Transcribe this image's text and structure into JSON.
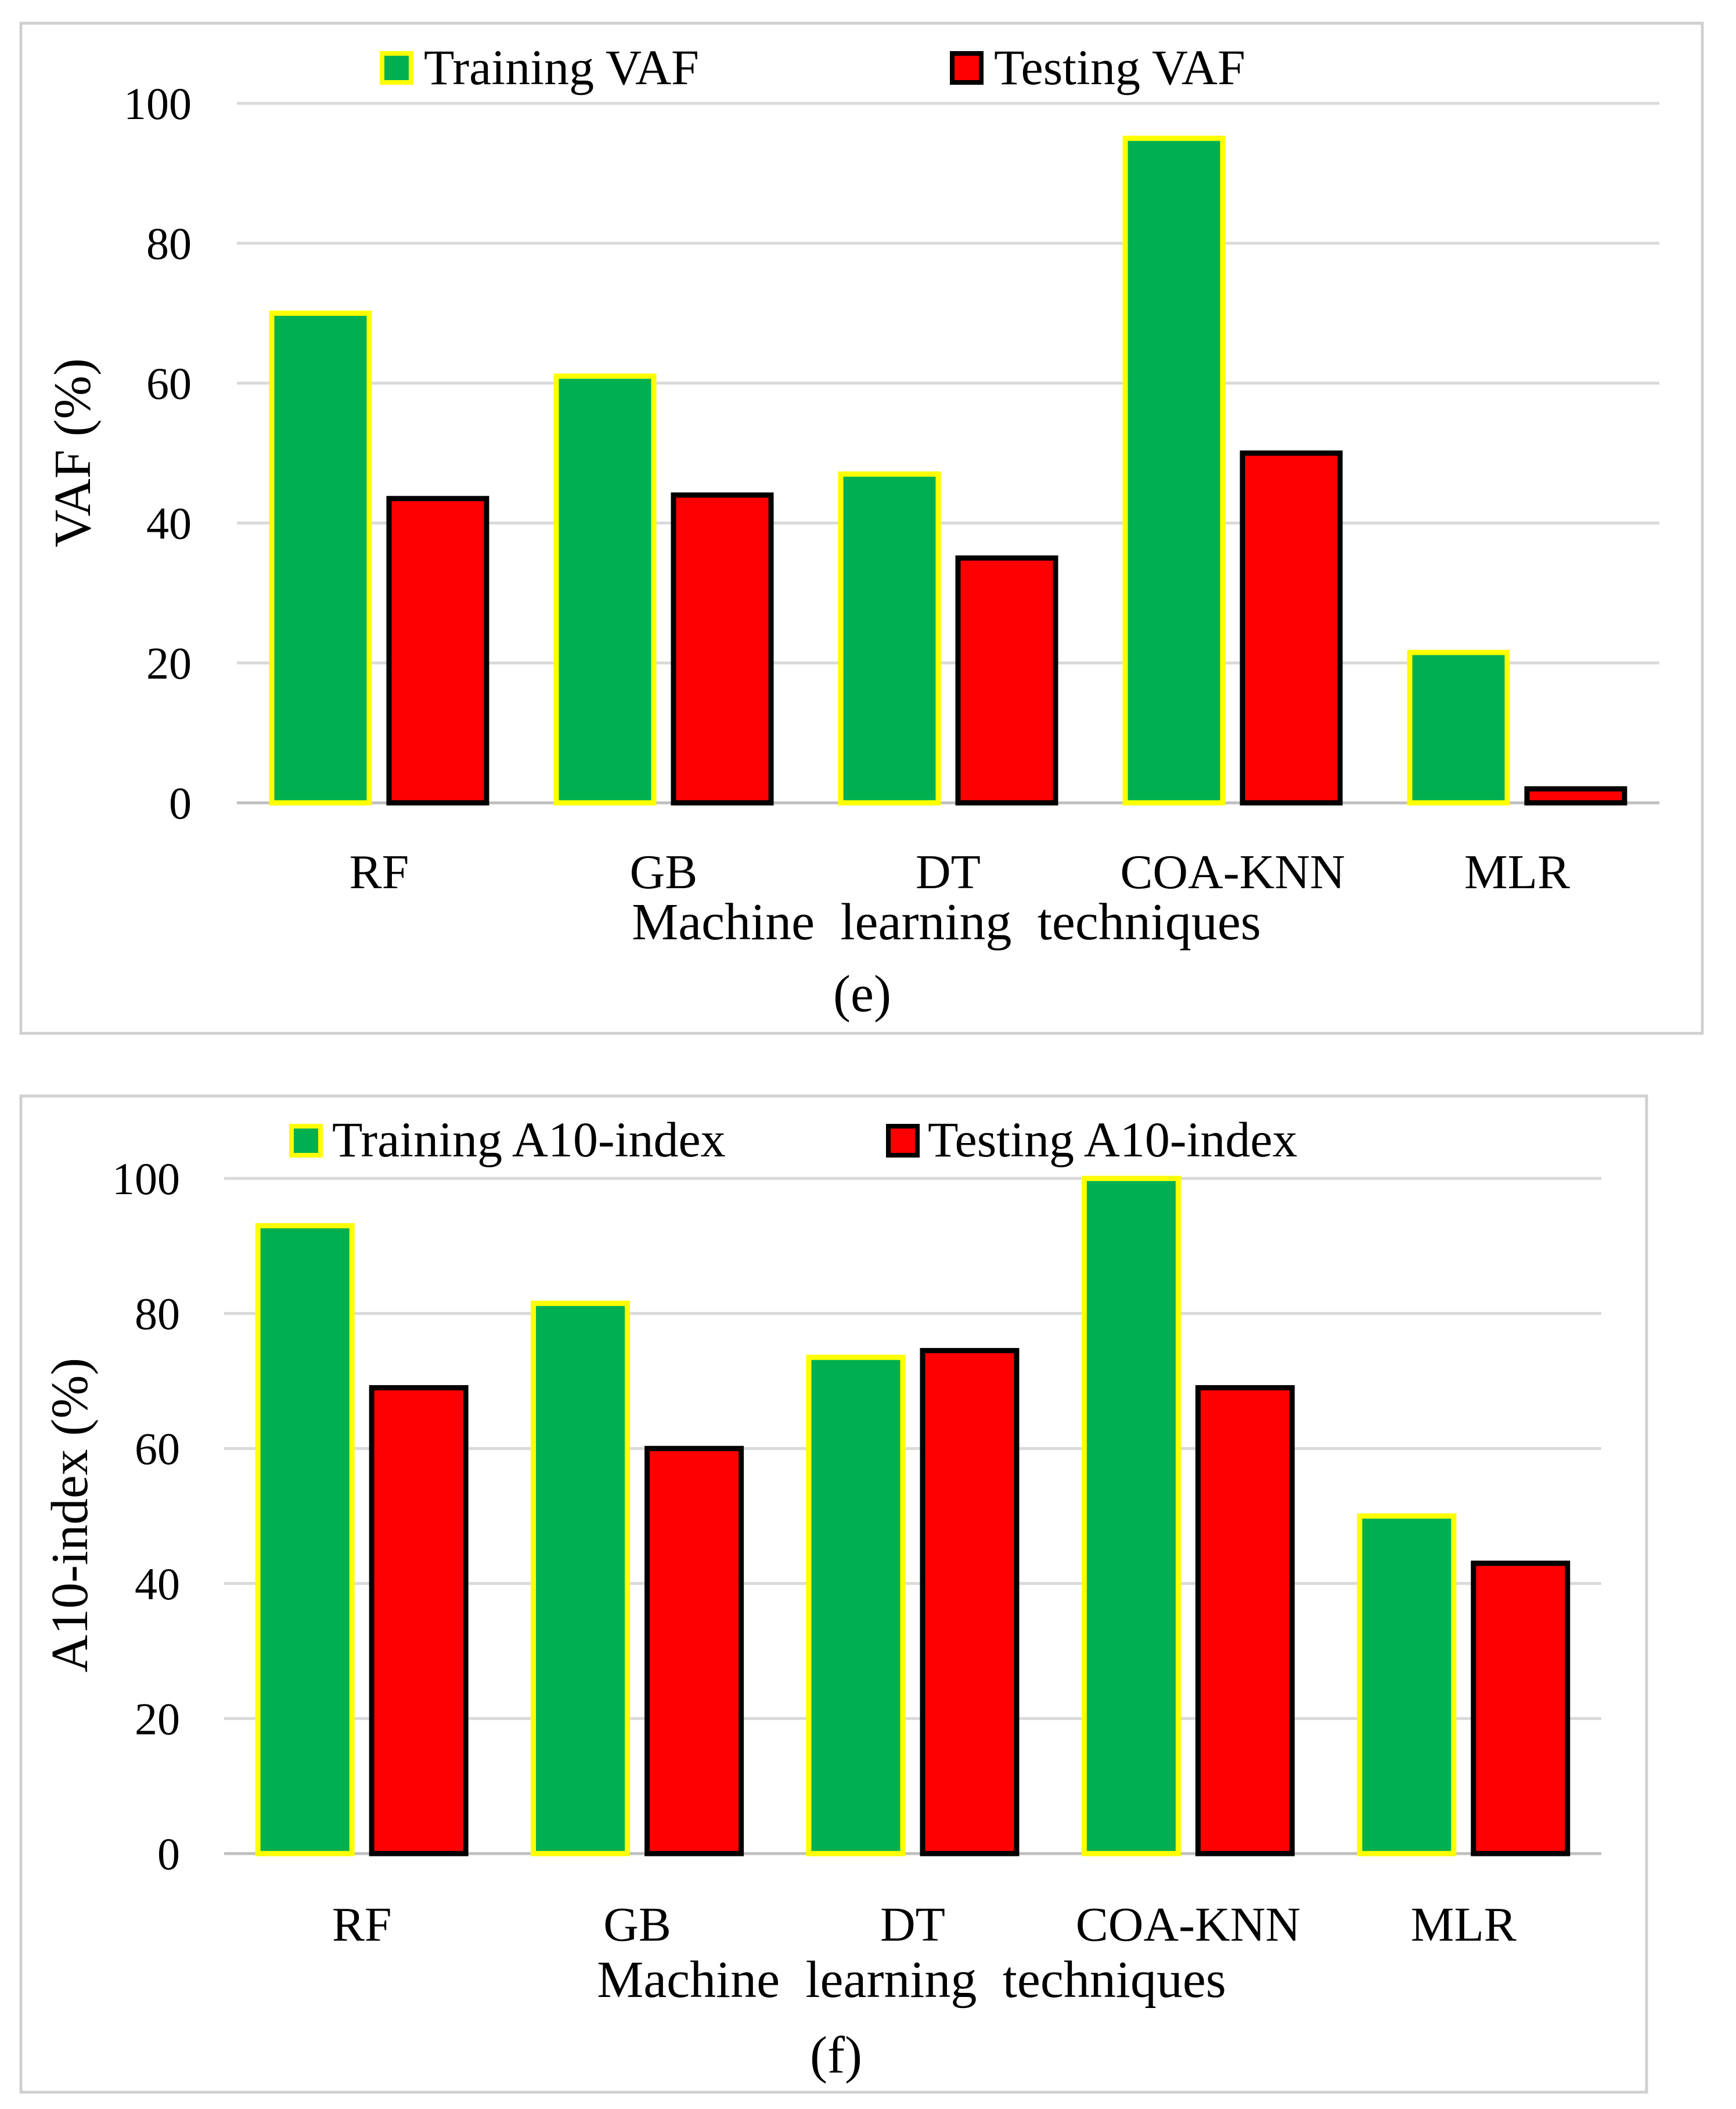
{
  "chart_data": [
    {
      "type": "bar",
      "panel_label": "(e)",
      "categories": [
        "RF",
        "GB",
        "DT",
        "COA-KNN",
        "MLR"
      ],
      "series": [
        {
          "name": "Training VAF",
          "values": [
            70,
            61,
            47,
            95,
            21.5
          ],
          "color": "#00b050",
          "edge": "#ffff00"
        },
        {
          "name": "Testing VAF",
          "values": [
            43.5,
            44,
            35,
            50,
            2
          ],
          "color": "#ff0000",
          "edge": "#000000"
        }
      ],
      "title": "",
      "xlabel": "Machine learning techniques",
      "ylabel": "VAF (%)",
      "ylim": [
        0,
        100
      ],
      "yticks": [
        "0",
        "20",
        "40",
        "60",
        "80",
        "100"
      ],
      "grid": true,
      "legend": "top"
    },
    {
      "type": "bar",
      "panel_label": "(f)",
      "categories": [
        "RF",
        "GB",
        "DT",
        "COA-KNN",
        "MLR"
      ],
      "series": [
        {
          "name": "Training A10-index",
          "values": [
            93,
            81.5,
            73.5,
            100,
            50
          ],
          "color": "#00b050",
          "edge": "#ffff00"
        },
        {
          "name": "Testing A10-index",
          "values": [
            69,
            60,
            74.5,
            69,
            43
          ],
          "color": "#ff0000",
          "edge": "#000000"
        }
      ],
      "title": "",
      "xlabel": "Machine learning techniques",
      "ylabel": "A10-index (%)",
      "ylim": [
        0,
        100
      ],
      "yticks": [
        "0",
        "20",
        "40",
        "60",
        "80",
        "100"
      ],
      "grid": true,
      "legend": "top"
    }
  ]
}
